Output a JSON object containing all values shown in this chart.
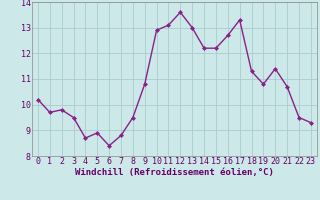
{
  "x": [
    0,
    1,
    2,
    3,
    4,
    5,
    6,
    7,
    8,
    9,
    10,
    11,
    12,
    13,
    14,
    15,
    16,
    17,
    18,
    19,
    20,
    21,
    22,
    23
  ],
  "y": [
    10.2,
    9.7,
    9.8,
    9.5,
    8.7,
    8.9,
    8.4,
    8.8,
    9.5,
    10.8,
    12.9,
    13.1,
    13.6,
    13.0,
    12.2,
    12.2,
    12.7,
    13.3,
    11.3,
    10.8,
    11.4,
    10.7,
    9.5,
    9.3
  ],
  "line_color": "#882288",
  "marker": "D",
  "marker_size": 2.0,
  "background_color": "#cce8e8",
  "grid_color": "#aacccc",
  "xlabel": "Windchill (Refroidissement éolien,°C)",
  "xlim": [
    -0.5,
    23.5
  ],
  "ylim": [
    8,
    14
  ],
  "yticks": [
    8,
    9,
    10,
    11,
    12,
    13,
    14
  ],
  "xticks": [
    0,
    1,
    2,
    3,
    4,
    5,
    6,
    7,
    8,
    9,
    10,
    11,
    12,
    13,
    14,
    15,
    16,
    17,
    18,
    19,
    20,
    21,
    22,
    23
  ],
  "label_fontsize": 6.5,
  "tick_fontsize": 6.0,
  "spine_color": "#888888",
  "xlabel_color": "#660066",
  "tick_color": "#660066",
  "line_width": 1.0
}
